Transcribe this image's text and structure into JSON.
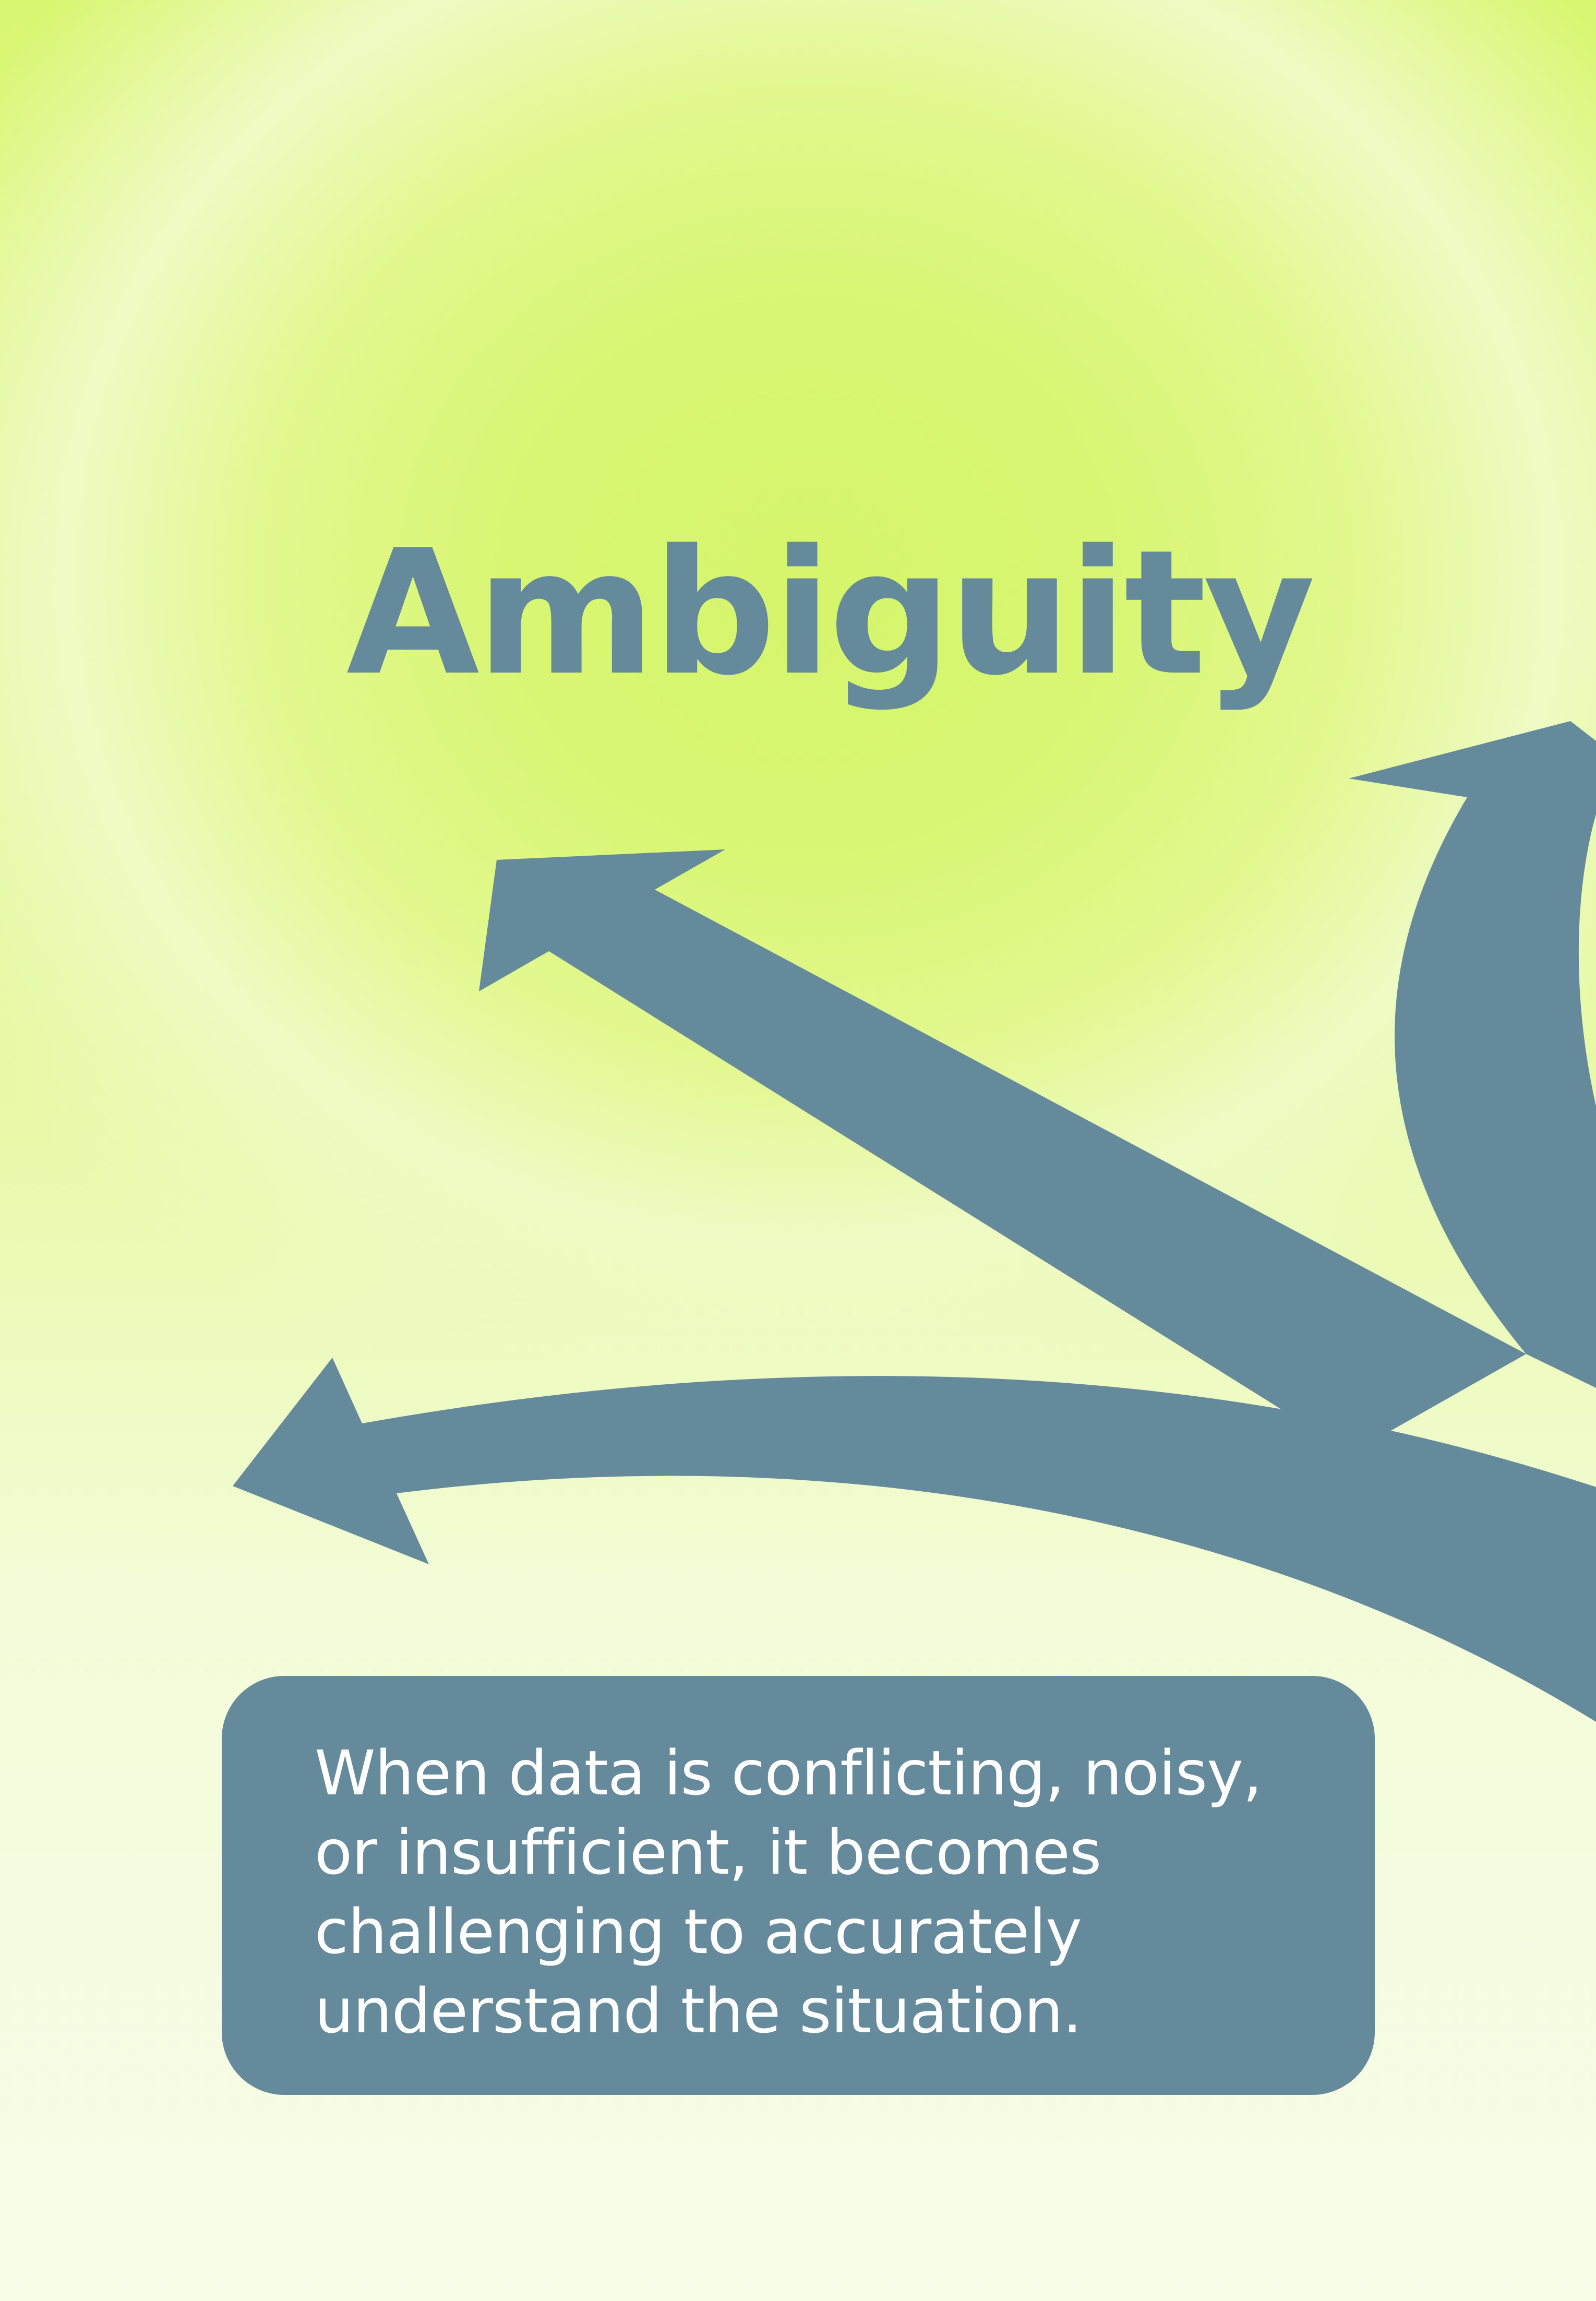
{
  "title": "Ambiguity",
  "description": "When data is conflicting, noisy, or insufficient, it becomes challenging to accurately understand the situation.",
  "colors": {
    "accent": "#658a9c",
    "background_top": "#d6f56c",
    "background_bottom": "#f8fde9",
    "text_on_accent": "#ffffff"
  },
  "icons": [
    "branching-arrows-icon"
  ]
}
